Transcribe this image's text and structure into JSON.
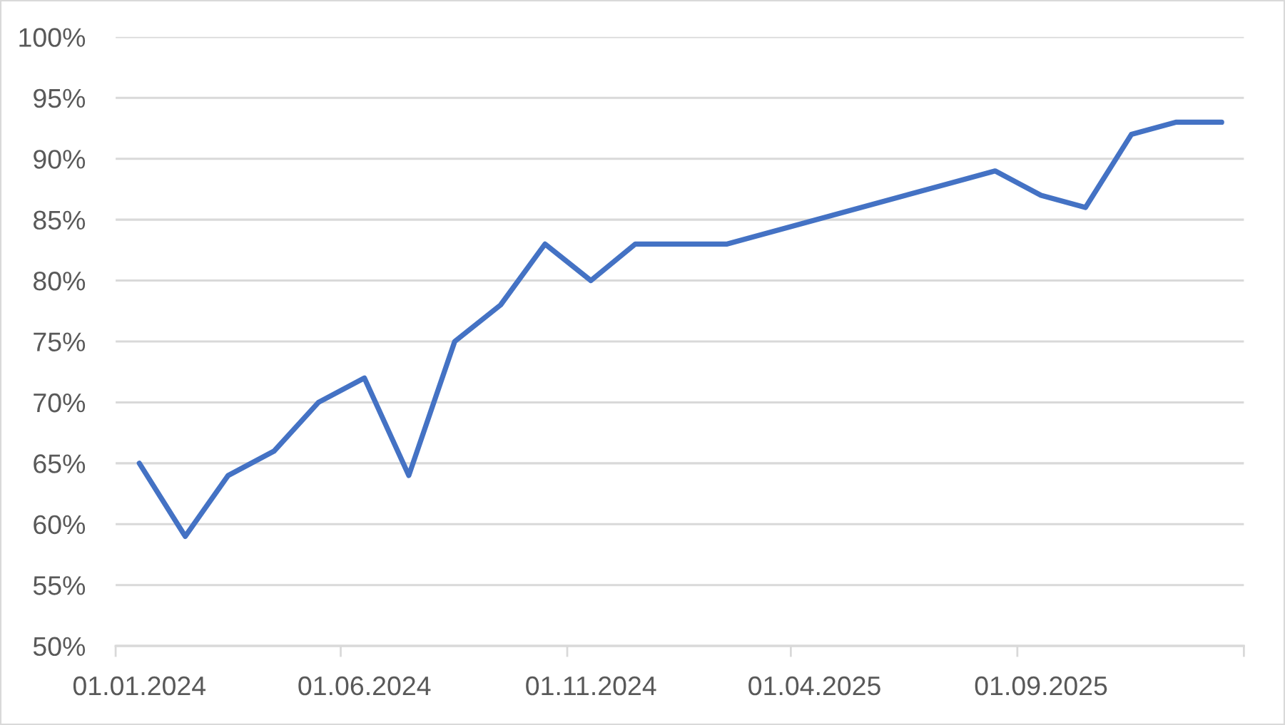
{
  "chart_data": {
    "type": "line",
    "x": [
      "2024-01",
      "2024-02",
      "2024-03",
      "2024-04",
      "2024-05",
      "2024-06",
      "2024-07",
      "2024-08",
      "2024-09",
      "2024-10",
      "2024-11",
      "2024-12",
      "2025-02",
      "2025-08",
      "2025-09",
      "2025-10",
      "2025-11",
      "2025-12",
      "2026-01"
    ],
    "series": [
      {
        "color": "#4472c4",
        "values": [
          65,
          59,
          64,
          66,
          70,
          72,
          64,
          75,
          78,
          83,
          80,
          83,
          83,
          89,
          87,
          86,
          92,
          93,
          93
        ]
      }
    ],
    "xlim": [
      "2023-12-16",
      "2026-01-16"
    ],
    "xticks": [
      {
        "value": "2023-12-16",
        "label": null
      },
      {
        "value": "2024-01-01",
        "label": "01.01.2024"
      },
      {
        "value": "2024-05-16",
        "label": null
      },
      {
        "value": "2024-06-01",
        "label": "01.06.2024"
      },
      {
        "value": "2024-10-16",
        "label": null
      },
      {
        "value": "2024-11-01",
        "label": "01.11.2024"
      },
      {
        "value": "2025-03-16",
        "label": null
      },
      {
        "value": "2025-04-01",
        "label": "01.04.2025"
      },
      {
        "value": "2025-08-16",
        "label": null
      },
      {
        "value": "2025-09-01",
        "label": "01.09.2025"
      },
      {
        "value": "2026-01-16",
        "label": null
      }
    ],
    "ylim": [
      50,
      100
    ],
    "yticks": [
      {
        "value": 50,
        "label": "50%"
      },
      {
        "value": 55,
        "label": "55%"
      },
      {
        "value": 60,
        "label": "60%"
      },
      {
        "value": 65,
        "label": "65%"
      },
      {
        "value": 70,
        "label": "70%"
      },
      {
        "value": 75,
        "label": "75%"
      },
      {
        "value": 80,
        "label": "80%"
      },
      {
        "value": 85,
        "label": "85%"
      },
      {
        "value": 90,
        "label": "90%"
      },
      {
        "value": 95,
        "label": "95%"
      },
      {
        "value": 100,
        "label": "100%"
      }
    ],
    "grid": "y",
    "line_style": "solid"
  }
}
